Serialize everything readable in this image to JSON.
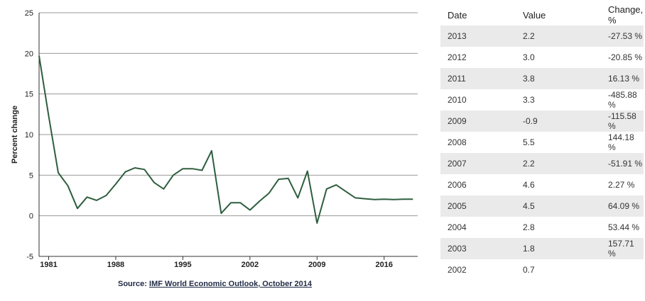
{
  "chart_data": {
    "type": "line",
    "title": "",
    "xlabel": "",
    "ylabel": "Percent change",
    "xlim": [
      1980,
      2019.5
    ],
    "ylim": [
      -5,
      25
    ],
    "yticks": [
      "25",
      "20",
      "15",
      "10",
      "5",
      "0",
      "-5"
    ],
    "xticks": [
      "1981",
      "1988",
      "1995",
      "2002",
      "2009",
      "2016"
    ],
    "grid": true,
    "line_color": "#2e5e3e",
    "series": [
      {
        "x": [
          1980,
          1981,
          1982,
          1983,
          1984,
          1985,
          1986,
          1987,
          1988,
          1989,
          1990,
          1991,
          1992,
          1993,
          1994,
          1995,
          1996,
          1997,
          1998,
          1999,
          2000,
          2001,
          2002,
          2003,
          2004,
          2005,
          2006,
          2007,
          2008,
          2009,
          2010,
          2011,
          2012,
          2013,
          2014,
          2015,
          2016,
          2017,
          2018,
          2019
        ],
        "y": [
          19.7,
          12.3,
          5.3,
          3.7,
          0.9,
          2.3,
          1.9,
          2.5,
          3.9,
          5.4,
          5.9,
          5.7,
          4.1,
          3.3,
          5.0,
          5.8,
          5.8,
          5.6,
          8.0,
          0.3,
          1.6,
          1.6,
          0.7,
          1.8,
          2.8,
          4.5,
          4.6,
          2.2,
          5.5,
          -0.9,
          3.3,
          3.8,
          3.0,
          2.2,
          2.1,
          2.0,
          2.05,
          2.0,
          2.05,
          2.05
        ]
      }
    ]
  },
  "source": {
    "prefix": "Source: ",
    "link": "IMF World Economic Outlook, October 2014"
  },
  "table": {
    "headers": [
      "Date",
      "Value",
      "Change, %"
    ],
    "rows": [
      [
        "2013",
        "2.2",
        "-27.53 %"
      ],
      [
        "2012",
        "3.0",
        "-20.85 %"
      ],
      [
        "2011",
        "3.8",
        "16.13 %"
      ],
      [
        "2010",
        "3.3",
        "-485.88 %"
      ],
      [
        "2009",
        "-0.9",
        "-115.58 %"
      ],
      [
        "2008",
        "5.5",
        "144.18 %"
      ],
      [
        "2007",
        "2.2",
        "-51.91 %"
      ],
      [
        "2006",
        "4.6",
        "2.27 %"
      ],
      [
        "2005",
        "4.5",
        "64.09 %"
      ],
      [
        "2004",
        "2.8",
        "53.44 %"
      ],
      [
        "2003",
        "1.8",
        "157.71 %"
      ],
      [
        "2002",
        "0.7",
        ""
      ]
    ]
  }
}
